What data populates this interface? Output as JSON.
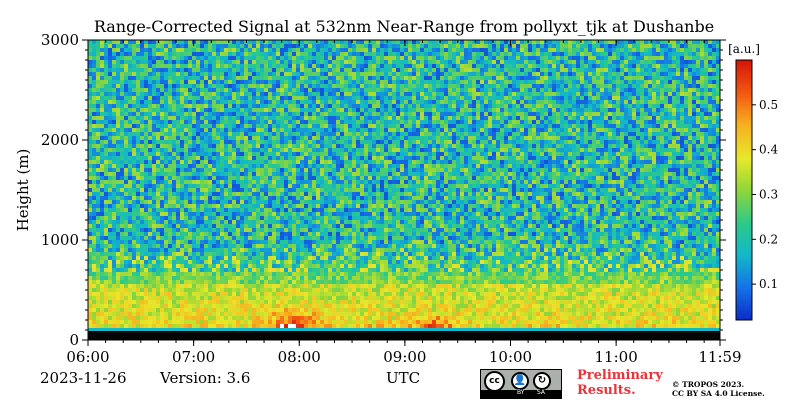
{
  "chart_data": {
    "type": "heatmap",
    "title": "Range-Corrected Signal at 532nm Near-Range from pollyxt_tjk at Dushanbe",
    "xlabel": "UTC",
    "ylabel": "Height (m)",
    "x_range_minutes": [
      360,
      719
    ],
    "x_ticks": [
      {
        "label": "06:00",
        "minute": 360
      },
      {
        "label": "07:00",
        "minute": 420
      },
      {
        "label": "08:00",
        "minute": 480
      },
      {
        "label": "09:00",
        "minute": 540
      },
      {
        "label": "10:00",
        "minute": 600
      },
      {
        "label": "11:00",
        "minute": 660
      },
      {
        "label": "11:59",
        "minute": 719
      }
    ],
    "ylim": [
      0,
      3000
    ],
    "y_ticks": [
      {
        "label": "0",
        "value": 0
      },
      {
        "label": "1000",
        "value": 1000
      },
      {
        "label": "2000",
        "value": 2000
      },
      {
        "label": "3000",
        "value": 3000
      }
    ],
    "colorbar": {
      "unit_label": "[a.u.]",
      "range": [
        0.02,
        0.6
      ],
      "ticks": [
        {
          "label": "0.1",
          "value": 0.1
        },
        {
          "label": "0.2",
          "value": 0.2
        },
        {
          "label": "0.3",
          "value": 0.3
        },
        {
          "label": "0.4",
          "value": 0.4
        },
        {
          "label": "0.5",
          "value": 0.5
        }
      ]
    },
    "typical_signal": {
      "near_surface_max": 0.6,
      "boundary_layer_0_600m": 0.35,
      "above_1000m": 0.2
    }
  },
  "footer": {
    "date": "2023-11-26",
    "version": "Version: 3.6",
    "utc_label": "UTC",
    "preliminary_line1": "Preliminary",
    "preliminary_line2": "Results.",
    "copyright_line1": "© TROPOS 2023.",
    "copyright_line2": "CC BY SA 4.0 License.",
    "license_by": "BY",
    "license_sa": "SA",
    "license_cc": "cc"
  },
  "colors": {
    "preliminary": "#e8333a",
    "badge": "#abb1aa"
  }
}
